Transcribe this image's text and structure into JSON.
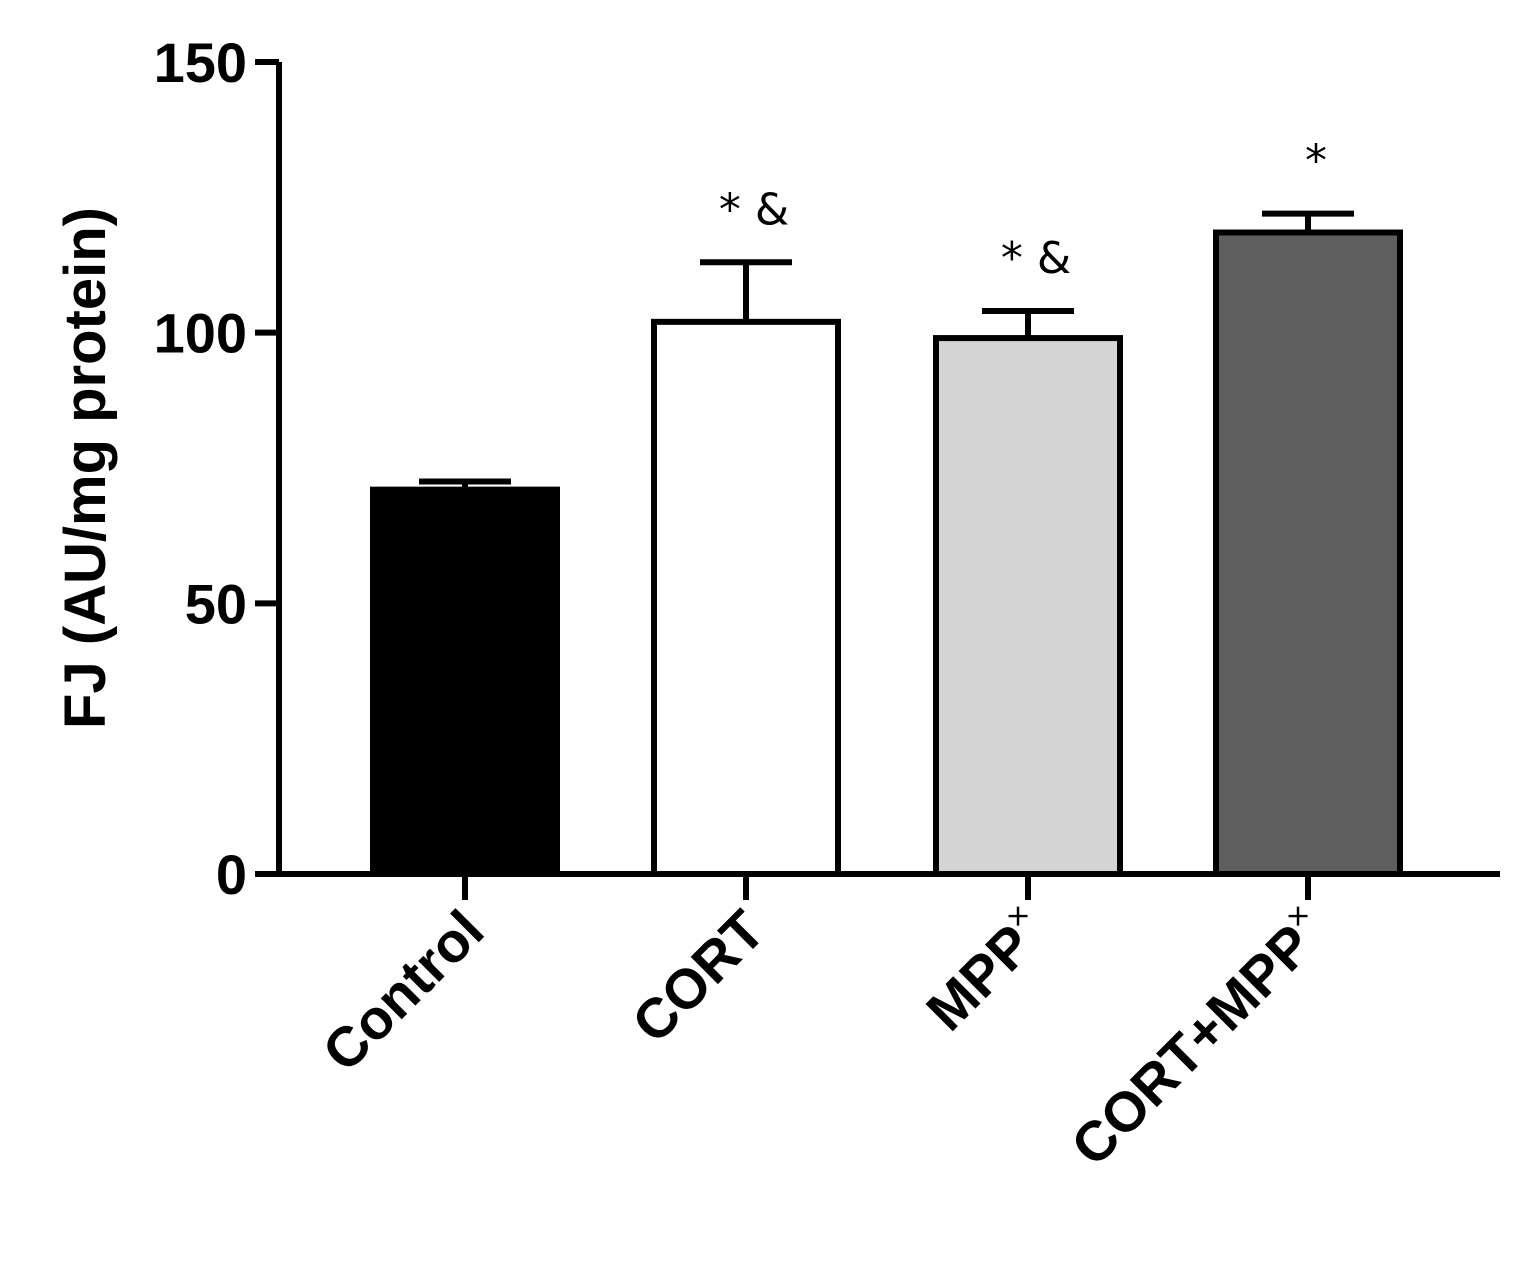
{
  "chart_data": {
    "type": "bar",
    "title": "",
    "xlabel": "",
    "ylabel": "FJ (AU/mg protein)",
    "ylim": [
      0,
      150
    ],
    "yticks": [
      "0",
      "50",
      "100",
      "150"
    ],
    "grid": false,
    "legend": "none",
    "categories": [
      {
        "label_main": "Control",
        "label_sup": ""
      },
      {
        "label_main": "CORT",
        "label_sup": ""
      },
      {
        "label_main": "MPP",
        "label_sup": "×"
      },
      {
        "label_main": "CORT+MPP",
        "label_sup": "×"
      }
    ],
    "values": [
      71,
      102,
      99,
      118.5
    ],
    "error_upper": [
      1.5,
      11,
      5,
      3.5
    ],
    "annotations": [
      "",
      "* &",
      "* &",
      "*"
    ],
    "colors": {
      "fills": [
        "#000000",
        "#ffffff",
        "#d4d4d4",
        "#5e5e5e"
      ],
      "stroke": "#000000"
    }
  }
}
